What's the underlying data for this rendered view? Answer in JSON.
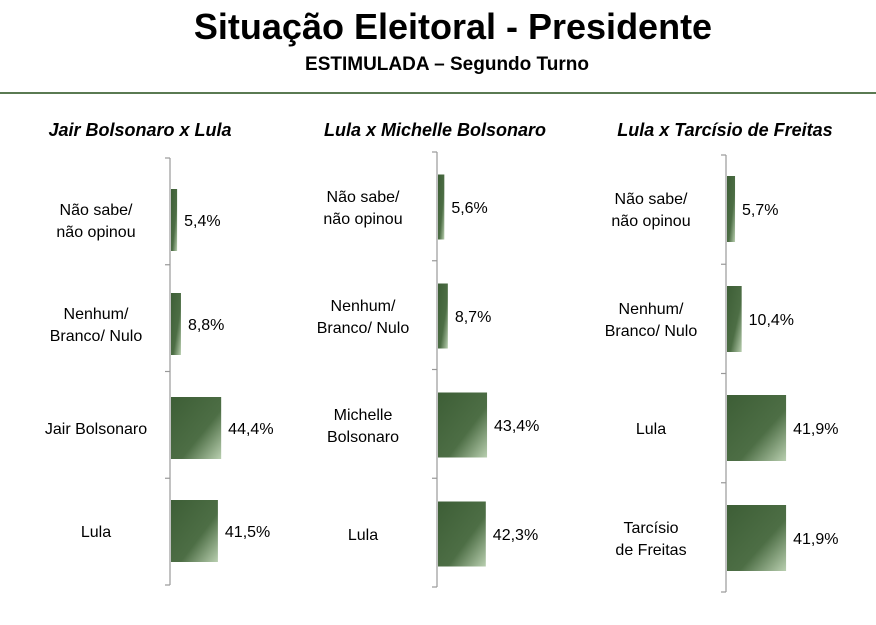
{
  "header": {
    "title": "Situação Eleitoral - Presidente",
    "subtitle": "ESTIMULADA – Segundo Turno"
  },
  "colors": {
    "bar_dark": "#3d5e36",
    "bar_light": "#b9cfb0",
    "axis": "#999999",
    "rule": "#5a7a52"
  },
  "chart_data": [
    {
      "type": "bar",
      "title": "Jair Bolsonaro x Lula",
      "categories": [
        "Não sabe/ não opinou",
        "Nenhum/ Branco/ Nulo",
        "Jair Bolsonaro",
        "Lula"
      ],
      "values": [
        5.4,
        8.8,
        44.4,
        41.5
      ],
      "value_labels": [
        "5,4%",
        "8,8%",
        "44,4%",
        "41,5%"
      ]
    },
    {
      "type": "bar",
      "title": "Lula x Michelle Bolsonaro",
      "categories": [
        "Não sabe/ não opinou",
        "Nenhum/ Branco/ Nulo",
        "Michelle Bolsonaro",
        "Lula"
      ],
      "values": [
        5.6,
        8.7,
        43.4,
        42.3
      ],
      "value_labels": [
        "5,6%",
        "8,7%",
        "43,4%",
        "42,3%"
      ]
    },
    {
      "type": "bar",
      "title": "Lula x Tarcísio de Freitas",
      "categories": [
        "Não sabe/ não opinou",
        "Nenhum/ Branco/ Nulo",
        "Lula",
        "Tarcísio de Freitas"
      ],
      "values": [
        5.7,
        10.4,
        41.9,
        41.9
      ],
      "value_labels": [
        "5,7%",
        "10,4%",
        "41,9%",
        "41,9%"
      ]
    }
  ]
}
